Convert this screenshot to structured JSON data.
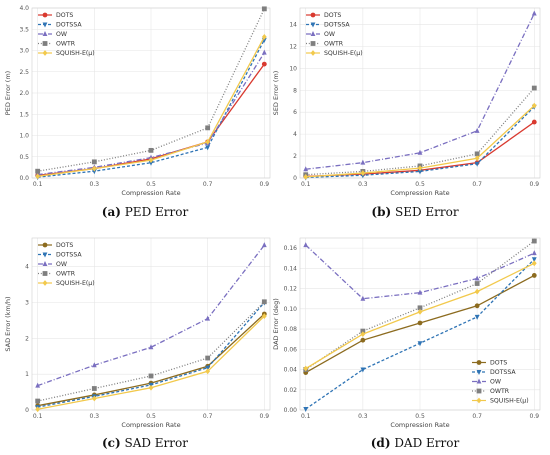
{
  "colors": {
    "DOTS": "#d93a30",
    "DOTSSA": "#2f74b5",
    "OW": "#7a6fc0",
    "OWTR": "#7f7f7f",
    "SQUISH-E(μ)": "#f2c94c",
    "DOTS_sad": "#8c6b1f",
    "DOTS_dad": "#8c6b1f"
  },
  "chart_data": [
    {
      "id": "a",
      "type": "line",
      "caption_letter": "(a)",
      "caption_text": "PED Error",
      "xlabel": "Compression Rate",
      "ylabel": "PED Error (m)",
      "x": [
        0.1,
        0.3,
        0.5,
        0.7,
        0.9
      ],
      "x_ticks": [
        "0.1",
        "0.3",
        "0.5",
        "0.7",
        "0.9"
      ],
      "ylim": [
        0,
        4.0
      ],
      "y_ticks": [
        "0.0",
        "0.5",
        "1.0",
        "1.5",
        "2.0",
        "2.5",
        "3.0",
        "3.5",
        "4.0"
      ],
      "legend_position": "top-left",
      "series": [
        {
          "name": "DOTS",
          "values": [
            0.06,
            0.22,
            0.45,
            0.85,
            2.68
          ]
        },
        {
          "name": "DOTSSA",
          "values": [
            0.02,
            0.16,
            0.36,
            0.72,
            3.25
          ]
        },
        {
          "name": "OW",
          "values": [
            0.08,
            0.25,
            0.48,
            0.82,
            2.95
          ]
        },
        {
          "name": "OWTR",
          "values": [
            0.16,
            0.38,
            0.65,
            1.18,
            3.98
          ]
        },
        {
          "name": "SQUISH-E(μ)",
          "values": [
            0.04,
            0.22,
            0.42,
            0.85,
            3.32
          ]
        }
      ]
    },
    {
      "id": "b",
      "type": "line",
      "caption_letter": "(b)",
      "caption_text": "SED Error",
      "xlabel": "Compression Rate",
      "ylabel": "SED Error (m)",
      "x": [
        0.1,
        0.3,
        0.5,
        0.7,
        0.9
      ],
      "x_ticks": [
        "0.1",
        "0.3",
        "0.5",
        "0.7",
        "0.9"
      ],
      "ylim": [
        0,
        15.5
      ],
      "y_ticks": [
        "0",
        "2",
        "4",
        "6",
        "8",
        "10",
        "12",
        "14"
      ],
      "y_tick_values": [
        0,
        2,
        4,
        6,
        8,
        10,
        12,
        14
      ],
      "legend_position": "top-left",
      "series": [
        {
          "name": "DOTS",
          "values": [
            0.15,
            0.35,
            0.7,
            1.4,
            5.1
          ]
        },
        {
          "name": "DOTSSA",
          "values": [
            0.05,
            0.25,
            0.6,
            1.3,
            6.5
          ]
        },
        {
          "name": "OW",
          "values": [
            0.8,
            1.4,
            2.3,
            4.3,
            15.0
          ]
        },
        {
          "name": "OWTR",
          "values": [
            0.3,
            0.6,
            1.1,
            2.2,
            8.2
          ]
        },
        {
          "name": "SQUISH-E(μ)",
          "values": [
            0.1,
            0.45,
            0.9,
            1.8,
            6.6
          ]
        }
      ]
    },
    {
      "id": "c",
      "type": "line",
      "caption_letter": "(c)",
      "caption_text": "SAD Error",
      "xlabel": "Compression Rate",
      "ylabel": "SAD Error (km/h)",
      "x": [
        0.1,
        0.3,
        0.5,
        0.7,
        0.9
      ],
      "x_ticks": [
        "0.1",
        "0.3",
        "0.5",
        "0.7",
        "0.9"
      ],
      "ylim": [
        0,
        4.8
      ],
      "y_ticks": [
        "0",
        "1",
        "2",
        "3",
        "4"
      ],
      "y_tick_values": [
        0,
        1,
        2,
        3,
        4
      ],
      "legend_position": "top-left",
      "series": [
        {
          "name": "DOTS",
          "values": [
            0.12,
            0.42,
            0.75,
            1.22,
            2.68
          ]
        },
        {
          "name": "DOTSSA",
          "values": [
            0.08,
            0.38,
            0.7,
            1.18,
            3.0
          ]
        },
        {
          "name": "OW",
          "values": [
            0.68,
            1.25,
            1.75,
            2.55,
            4.6
          ]
        },
        {
          "name": "OWTR",
          "values": [
            0.25,
            0.6,
            0.95,
            1.45,
            3.02
          ]
        },
        {
          "name": "SQUISH-E(μ)",
          "values": [
            0.02,
            0.32,
            0.62,
            1.08,
            2.62
          ]
        }
      ]
    },
    {
      "id": "d",
      "type": "line",
      "caption_letter": "(d)",
      "caption_text": "DAD Error",
      "xlabel": "Compression Rate",
      "ylabel": "DAD Error (deg)",
      "x": [
        0.1,
        0.3,
        0.5,
        0.7,
        0.9
      ],
      "x_ticks": [
        "0.1",
        "0.3",
        "0.5",
        "0.7",
        "0.9"
      ],
      "ylim": [
        0,
        0.17
      ],
      "y_ticks": [
        "0.00",
        "0.02",
        "0.04",
        "0.06",
        "0.08",
        "0.10",
        "0.12",
        "0.14",
        "0.16"
      ],
      "y_tick_values": [
        0,
        0.02,
        0.04,
        0.06,
        0.08,
        0.1,
        0.12,
        0.14,
        0.16
      ],
      "legend_position": "bottom-right",
      "series": [
        {
          "name": "DOTS",
          "values": [
            0.037,
            0.069,
            0.086,
            0.103,
            0.133
          ]
        },
        {
          "name": "DOTSSA",
          "values": [
            0.001,
            0.04,
            0.066,
            0.092,
            0.149
          ]
        },
        {
          "name": "OW",
          "values": [
            0.163,
            0.11,
            0.116,
            0.13,
            0.155
          ]
        },
        {
          "name": "OWTR",
          "values": [
            0.04,
            0.078,
            0.101,
            0.125,
            0.167
          ]
        },
        {
          "name": "SQUISH-E(μ)",
          "values": [
            0.041,
            0.075,
            0.097,
            0.117,
            0.145
          ]
        }
      ]
    }
  ]
}
